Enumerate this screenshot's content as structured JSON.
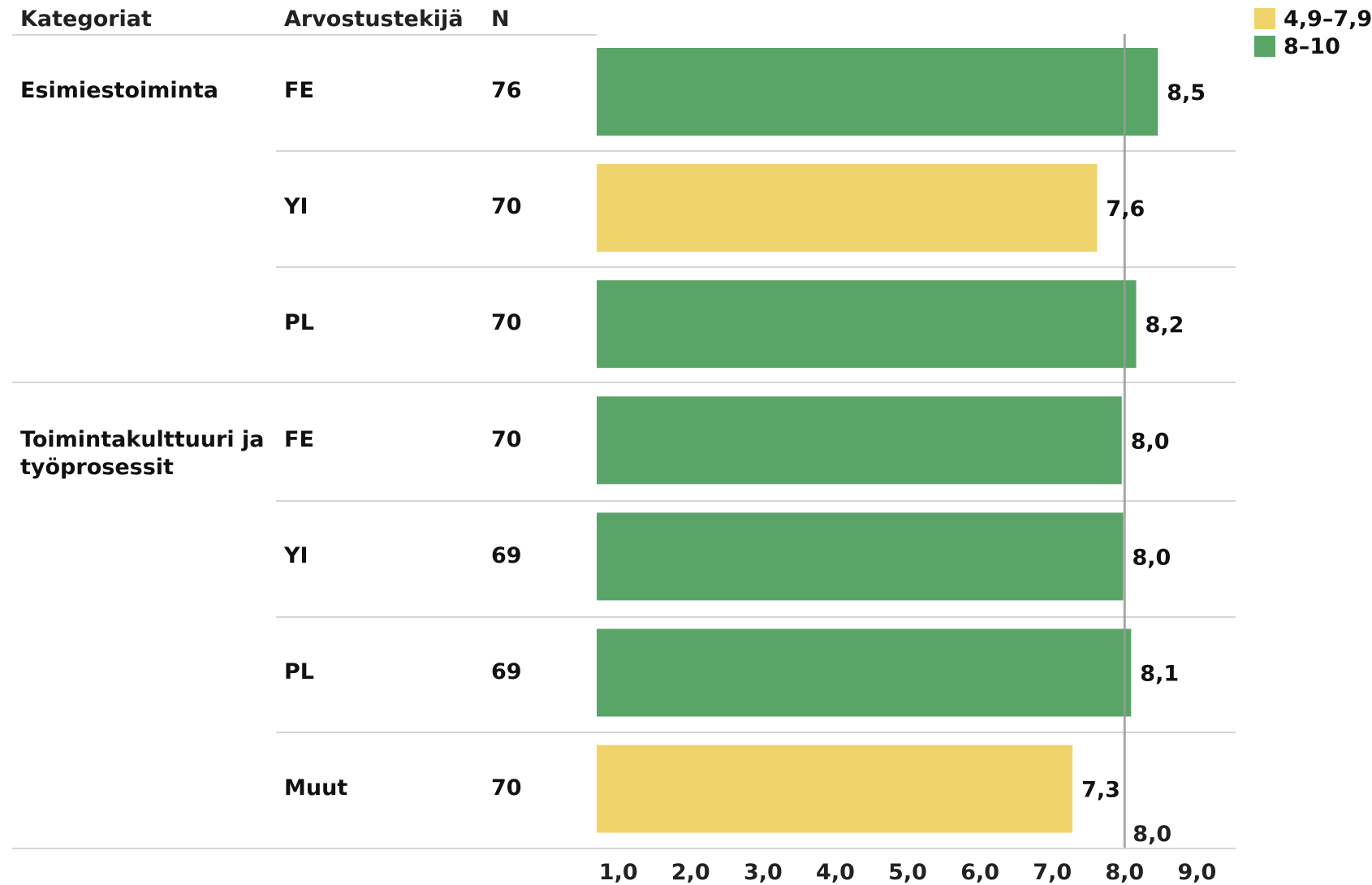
{
  "headers": {
    "category": "Kategoriat",
    "rater": "Arvostustekijä",
    "n": "N"
  },
  "legend": [
    {
      "label": "4,9–7,9",
      "color": "#efd46c"
    },
    {
      "label": "8–10",
      "color": "#58a567"
    }
  ],
  "groups": [
    {
      "name": "Esimiestoiminta"
    },
    {
      "name": "Toimintakulttuuri ja työprosessit"
    }
  ],
  "rows": [
    {
      "group": 0,
      "rater": "FE",
      "n": "76"
    },
    {
      "group": 0,
      "rater": "YI",
      "n": "70"
    },
    {
      "group": 0,
      "rater": "PL",
      "n": "70"
    },
    {
      "group": 1,
      "rater": "FE",
      "n": "70"
    },
    {
      "group": 1,
      "rater": "YI",
      "n": "69"
    },
    {
      "group": 1,
      "rater": "PL",
      "n": "69"
    },
    {
      "group": 1,
      "rater": "Muut",
      "n": "70"
    }
  ],
  "chart_data": {
    "type": "bar",
    "orientation": "horizontal",
    "categories": [
      "FE",
      "YI",
      "PL",
      "FE",
      "YI",
      "PL",
      "Muut"
    ],
    "values": [
      8.46,
      7.62,
      8.16,
      7.96,
      7.98,
      8.09,
      7.28
    ],
    "value_labels": [
      "8,5",
      "7,6",
      "8,2",
      "8,0",
      "8,0",
      "8,1",
      "7,3"
    ],
    "color_bands": [
      {
        "range": "4,9–7,9",
        "min": 4.9,
        "max": 7.9,
        "color": "#efd46c"
      },
      {
        "range": "8–10",
        "min": 8,
        "max": 10,
        "color": "#58a567"
      }
    ],
    "reference_line": {
      "value": 8.0,
      "label": "8,0",
      "color": "#999999"
    },
    "xlim": [
      0.7,
      9.4
    ],
    "xticks": [
      {
        "value": 1,
        "label": "1,0"
      },
      {
        "value": 2,
        "label": "2,0"
      },
      {
        "value": 3,
        "label": "3,0"
      },
      {
        "value": 4,
        "label": "4,0"
      },
      {
        "value": 5,
        "label": "5,0"
      },
      {
        "value": 6,
        "label": "6,0"
      },
      {
        "value": 7,
        "label": "7,0"
      },
      {
        "value": 8,
        "label": "8,0"
      },
      {
        "value": 9,
        "label": "9,0"
      }
    ],
    "grid": false,
    "legend_position": "top-right"
  }
}
